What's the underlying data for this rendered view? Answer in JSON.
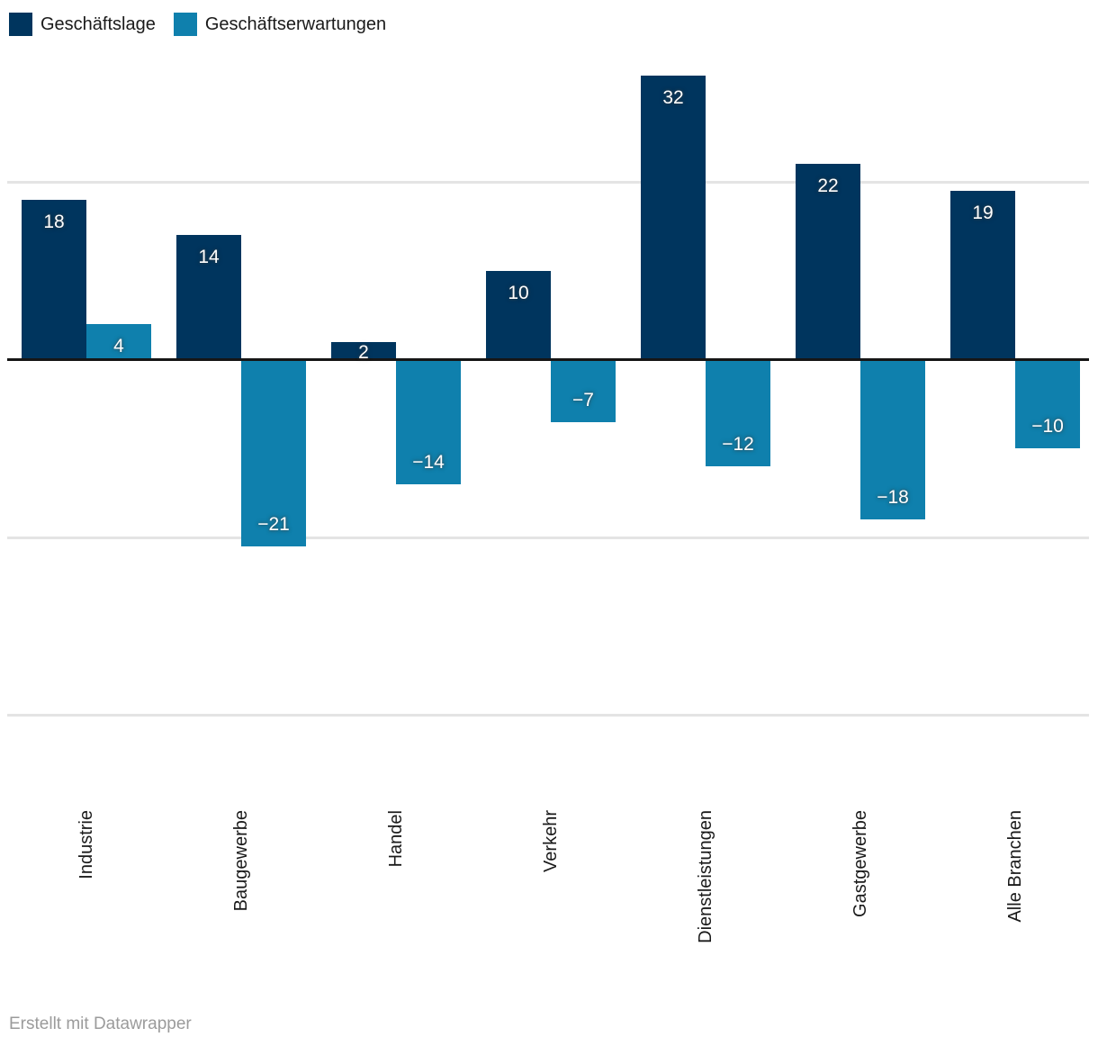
{
  "legend": {
    "items": [
      {
        "label": "Geschäftslage",
        "color": "#00355e"
      },
      {
        "label": "Geschäftserwartungen",
        "color": "#0f80ad"
      }
    ]
  },
  "chart_data": {
    "type": "bar",
    "title": "",
    "categories": [
      "Industrie",
      "Baugewerbe",
      "Handel",
      "Verkehr",
      "Dienstleistungen",
      "Gastgewerbe",
      "Alle Branchen"
    ],
    "series": [
      {
        "name": "Geschäftslage",
        "color": "#00355e",
        "values": [
          18,
          14,
          2,
          10,
          32,
          22,
          19
        ]
      },
      {
        "name": "Geschäftserwartungen",
        "color": "#0f80ad",
        "values": [
          4,
          -21,
          -14,
          -7,
          -12,
          -18,
          -10
        ]
      }
    ],
    "ylim": [
      -40,
      40
    ],
    "gridlines": [
      20,
      -20,
      -40
    ],
    "baseline": 0,
    "grid": true,
    "value_labels": true,
    "y_tick_labels": false,
    "legend_position": "top-left",
    "x_label_rotation": -90
  },
  "colors": {
    "grid": "#e4e4e4",
    "baseline": "#161616",
    "axis_text": "#1a1a1a",
    "value_text": "#ffffff",
    "credit_text": "#9b9b9b"
  },
  "footer": {
    "credit": "Erstellt mit Datawrapper"
  }
}
